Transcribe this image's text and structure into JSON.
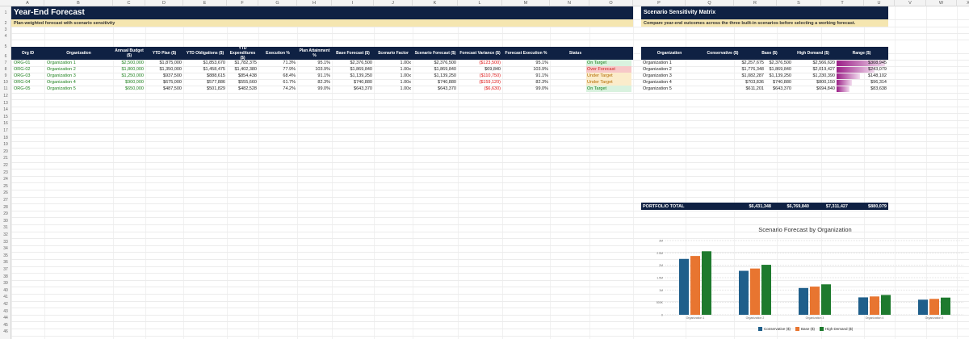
{
  "columns": [
    "A",
    "B",
    "C",
    "D",
    "E",
    "F",
    "G",
    "H",
    "I",
    "J",
    "K",
    "L",
    "M",
    "N",
    "O",
    "P",
    "Q",
    "R",
    "S",
    "T",
    "U",
    "V",
    "W",
    "X"
  ],
  "rows": [
    "1",
    "2",
    "3",
    "4",
    "5",
    "6",
    "7",
    "8",
    "9",
    "10",
    "11",
    "12",
    "13",
    "14",
    "15",
    "16",
    "17",
    "18",
    "19",
    "20",
    "21",
    "22",
    "23",
    "24",
    "25",
    "26",
    "27",
    "28",
    "29",
    "30",
    "31",
    "32",
    "33",
    "34",
    "35",
    "36",
    "37",
    "38",
    "39",
    "40",
    "41",
    "42",
    "43",
    "44",
    "45",
    "46"
  ],
  "forecast": {
    "title": "Year-End Forecast",
    "subtitle": "Plan-weighted forecast with scenario sensitivity",
    "headers": [
      "Org ID",
      "Organization",
      "Annual Budget ($)",
      "YTD Plan ($)",
      "YTD Obligations ($)",
      "YTD Expenditures ($)",
      "Execution %",
      "Plan Attainment %",
      "Base Forecast ($)",
      "Scenario Factor",
      "Scenario Forecast ($)",
      "Forecast Variance ($)",
      "Forecast Execution %",
      "Status"
    ],
    "rows": [
      {
        "id": "ORG-01",
        "org": "Organization 1",
        "budget": "$2,500,000",
        "plan": "$1,875,000",
        "oblig": "$1,853,670",
        "exp": "$1,782,375",
        "exec": "71.3%",
        "attain": "95.1%",
        "base": "$2,376,500",
        "factor": "1.00x",
        "scen": "$2,376,500",
        "var": "($123,500)",
        "fexec": "95.1%",
        "status": "On Target",
        "cls": "on"
      },
      {
        "id": "ORG-02",
        "org": "Organization 2",
        "budget": "$1,800,000",
        "plan": "$1,350,000",
        "oblig": "$1,458,475",
        "exp": "$1,402,380",
        "exec": "77.9%",
        "attain": "103.9%",
        "base": "$1,869,840",
        "factor": "1.00x",
        "scen": "$1,869,840",
        "var": "$69,840",
        "fexec": "103.9%",
        "status": "Over Forecast",
        "cls": "over"
      },
      {
        "id": "ORG-03",
        "org": "Organization 3",
        "budget": "$1,250,000",
        "plan": "$937,500",
        "oblig": "$888,615",
        "exp": "$854,438",
        "exec": "68.4%",
        "attain": "91.1%",
        "base": "$1,139,250",
        "factor": "1.00x",
        "scen": "$1,139,250",
        "var": "($110,750)",
        "fexec": "91.1%",
        "status": "Under Target",
        "cls": "under"
      },
      {
        "id": "ORG-04",
        "org": "Organization 4",
        "budget": "$900,000",
        "plan": "$675,000",
        "oblig": "$577,886",
        "exp": "$555,660",
        "exec": "61.7%",
        "attain": "82.3%",
        "base": "$740,880",
        "factor": "1.00x",
        "scen": "$740,880",
        "var": "($159,120)",
        "fexec": "82.3%",
        "status": "Under Target",
        "cls": "under"
      },
      {
        "id": "ORG-05",
        "org": "Organization 5",
        "budget": "$650,000",
        "plan": "$487,500",
        "oblig": "$501,829",
        "exp": "$482,528",
        "exec": "74.2%",
        "attain": "99.0%",
        "base": "$643,370",
        "factor": "1.00x",
        "scen": "$643,370",
        "var": "($6,630)",
        "fexec": "99.0%",
        "status": "On Target",
        "cls": "on"
      }
    ]
  },
  "matrix": {
    "title": "Scenario Sensitivity Matrix",
    "subtitle": "Compare year-end outcomes across the three built-in scenarios before selecting a working forecast.",
    "headers": [
      "Organization",
      "Conservative ($)",
      "Base ($)",
      "High Demand ($)",
      "Range ($)"
    ],
    "rows": [
      {
        "org": "Organization 1",
        "cons": "$2,257,675",
        "base": "$2,376,500",
        "high": "$2,566,620",
        "range": "$308,945",
        "range_value": 308945
      },
      {
        "org": "Organization 2",
        "cons": "$1,776,348",
        "base": "$1,869,840",
        "high": "$2,019,427",
        "range": "$243,079",
        "range_value": 243079
      },
      {
        "org": "Organization 3",
        "cons": "$1,082,287",
        "base": "$1,139,250",
        "high": "$1,230,390",
        "range": "$148,102",
        "range_value": 148102
      },
      {
        "org": "Organization 4",
        "cons": "$703,836",
        "base": "$740,880",
        "high": "$800,150",
        "range": "$96,314",
        "range_value": 96314
      },
      {
        "org": "Organization 5",
        "cons": "$611,201",
        "base": "$643,370",
        "high": "$694,840",
        "range": "$83,638",
        "range_value": 83638
      }
    ],
    "total": {
      "label": "PORTFOLIO TOTAL",
      "cons": "$6,431,348",
      "base": "$6,769,840",
      "high": "$7,311,427",
      "range": "$880,079"
    },
    "range_bar_color": "#9b1f87"
  },
  "chart_data": {
    "type": "bar",
    "title": "Scenario Forecast by Organization",
    "categories": [
      "Organization 1",
      "Organization 2",
      "Organization 3",
      "Organization 4",
      "Organization 5"
    ],
    "series": [
      {
        "name": "Conservative ($)",
        "color": "#1f5f8b",
        "values": [
          2257675,
          1776348,
          1082287,
          703836,
          611201
        ]
      },
      {
        "name": "Base ($)",
        "color": "#e87530",
        "values": [
          2376500,
          1869840,
          1139250,
          740880,
          643370
        ]
      },
      {
        "name": "High Demand ($)",
        "color": "#1e7a2e",
        "values": [
          2566620,
          2019427,
          1230390,
          800150,
          694840
        ]
      }
    ],
    "ylim": [
      0,
      3000000
    ],
    "yticks": [
      "0",
      "500K",
      "1M",
      "1.5M",
      "2M",
      "2.5M",
      "3M"
    ],
    "tick_values": [
      0,
      500000,
      1000000,
      1500000,
      2000000,
      2500000,
      3000000
    ],
    "grid": true,
    "legend": "bottom"
  }
}
